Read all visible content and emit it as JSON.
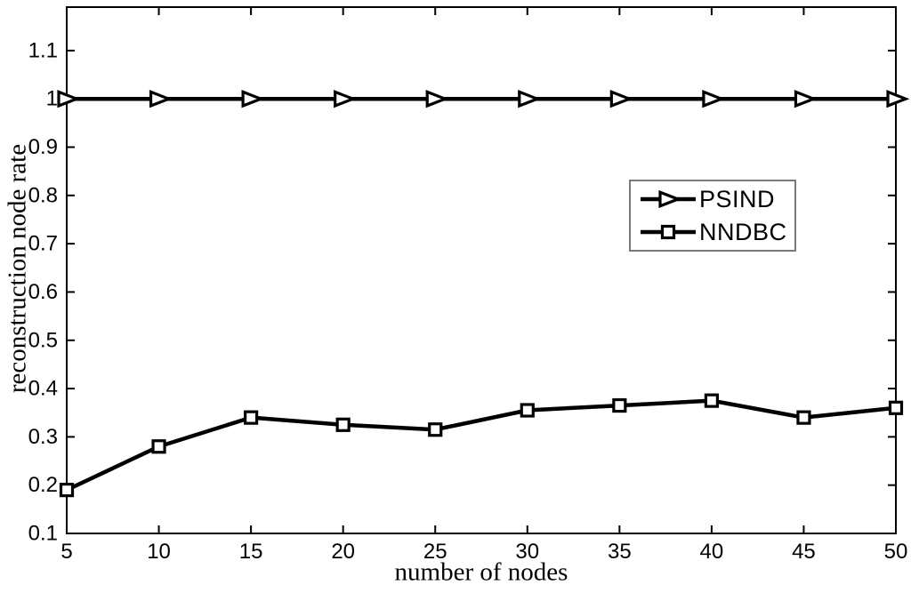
{
  "figure": {
    "background": "#ffffff",
    "axis_color": "#000000",
    "line_color": "#000000",
    "marker_fill": "#ffffff",
    "legend_border_color": "#7a7a7a"
  },
  "chart_data": {
    "type": "line",
    "title": "",
    "xlabel": "number of nodes",
    "ylabel": "reconstruction node rate",
    "x": [
      5,
      10,
      15,
      20,
      25,
      30,
      35,
      40,
      45,
      50
    ],
    "series": [
      {
        "name": "PSIND",
        "marker": "triangle-right",
        "color": "#000000",
        "values": [
          1,
          1,
          1,
          1,
          1,
          1,
          1,
          1,
          1,
          1
        ]
      },
      {
        "name": "NNDBC",
        "marker": "square",
        "color": "#000000",
        "values": [
          0.19,
          0.28,
          0.34,
          0.325,
          0.315,
          0.355,
          0.365,
          0.375,
          0.34,
          0.36
        ]
      }
    ],
    "xlim": [
      5,
      50
    ],
    "ylim": [
      0.1,
      1.19
    ],
    "xticks": [
      5,
      10,
      15,
      20,
      25,
      30,
      35,
      40,
      45,
      50
    ],
    "xtick_labels": [
      "5",
      "10",
      "15",
      "20",
      "25",
      "30",
      "35",
      "40",
      "45",
      "50"
    ],
    "yticks": [
      0.1,
      0.2,
      0.3,
      0.4,
      0.5,
      0.6,
      0.7,
      0.8,
      0.9,
      1,
      1.1
    ],
    "ytick_labels": [
      "0.1",
      "0.2",
      "0.3",
      "0.4",
      "0.5",
      "0.6",
      "0.7",
      "0.8",
      "0.9",
      "1",
      "1.1"
    ],
    "grid": false,
    "legend_position": "upper-right-inside"
  }
}
